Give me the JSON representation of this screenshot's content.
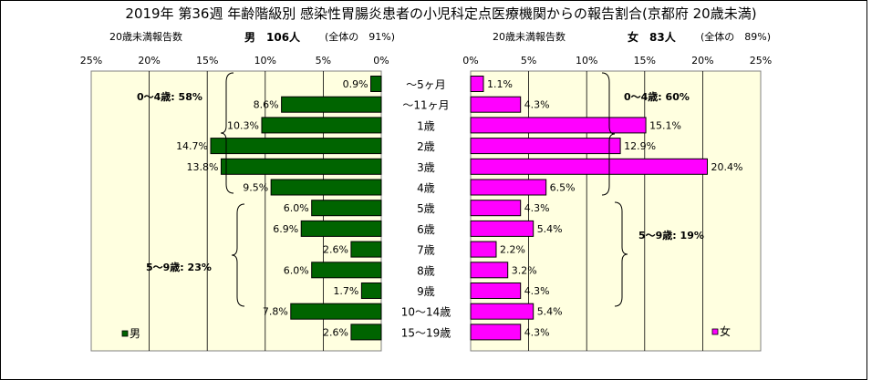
{
  "title": "2019年 第36週 年齢階級別 感染性胃腸炎患者の小児科定点医療機関からの報告割合(京都府 20歳未満)",
  "chart_data": [
    {
      "type": "bar",
      "orientation": "horizontal",
      "direction": "right-to-left",
      "series_name": "男",
      "header_left": "20歳未満報告数",
      "header_count": "男　106人",
      "header_share": "(全体の　91%)",
      "xlim": [
        0,
        25
      ],
      "ticks": [
        "0%",
        "5%",
        "10%",
        "15%",
        "20%",
        "25%"
      ],
      "categories": [
        "～5ヶ月",
        "～11ヶ月",
        "1歳",
        "2歳",
        "3歳",
        "4歳",
        "5歳",
        "6歳",
        "7歳",
        "8歳",
        "9歳",
        "10～14歳",
        "15～19歳"
      ],
      "values": [
        0.9,
        8.6,
        10.3,
        14.7,
        13.8,
        9.5,
        6.0,
        6.9,
        2.6,
        6.0,
        1.7,
        7.8,
        2.6
      ],
      "value_labels": [
        "0.9%",
        "8.6%",
        "10.3%",
        "14.7%",
        "13.8%",
        "9.5%",
        "6.0%",
        "6.9%",
        "2.6%",
        "6.0%",
        "1.7%",
        "7.8%",
        "2.6%"
      ],
      "annotations": [
        "0～4歳: 58%",
        "5～9歳: 23%"
      ],
      "legend": "男",
      "legend_position": "bottom-left",
      "color": "#006400",
      "plot_background": "#ffffe0",
      "grid": true
    },
    {
      "type": "bar",
      "orientation": "horizontal",
      "direction": "left-to-right",
      "series_name": "女",
      "header_left": "20歳未満報告数",
      "header_count": "女　83人",
      "header_share": "(全体の　89%)",
      "xlim": [
        0,
        25
      ],
      "ticks": [
        "0%",
        "5%",
        "10%",
        "15%",
        "20%",
        "25%"
      ],
      "categories": [
        "～5ヶ月",
        "～11ヶ月",
        "1歳",
        "2歳",
        "3歳",
        "4歳",
        "5歳",
        "6歳",
        "7歳",
        "8歳",
        "9歳",
        "10～14歳",
        "15～19歳"
      ],
      "values": [
        1.1,
        4.3,
        15.1,
        12.9,
        20.4,
        6.5,
        4.3,
        5.4,
        2.2,
        3.2,
        4.3,
        5.4,
        4.3
      ],
      "value_labels": [
        "1.1%",
        "4.3%",
        "15.1%",
        "12.9%",
        "20.4%",
        "6.5%",
        "4.3%",
        "5.4%",
        "2.2%",
        "3.2%",
        "4.3%",
        "5.4%",
        "4.3%"
      ],
      "annotations": [
        "0～4歳: 60%",
        "5～9歳: 19%"
      ],
      "legend": "女",
      "legend_position": "bottom-right",
      "color": "#ff00ff",
      "plot_background": "#ffffe0",
      "grid": true
    }
  ]
}
